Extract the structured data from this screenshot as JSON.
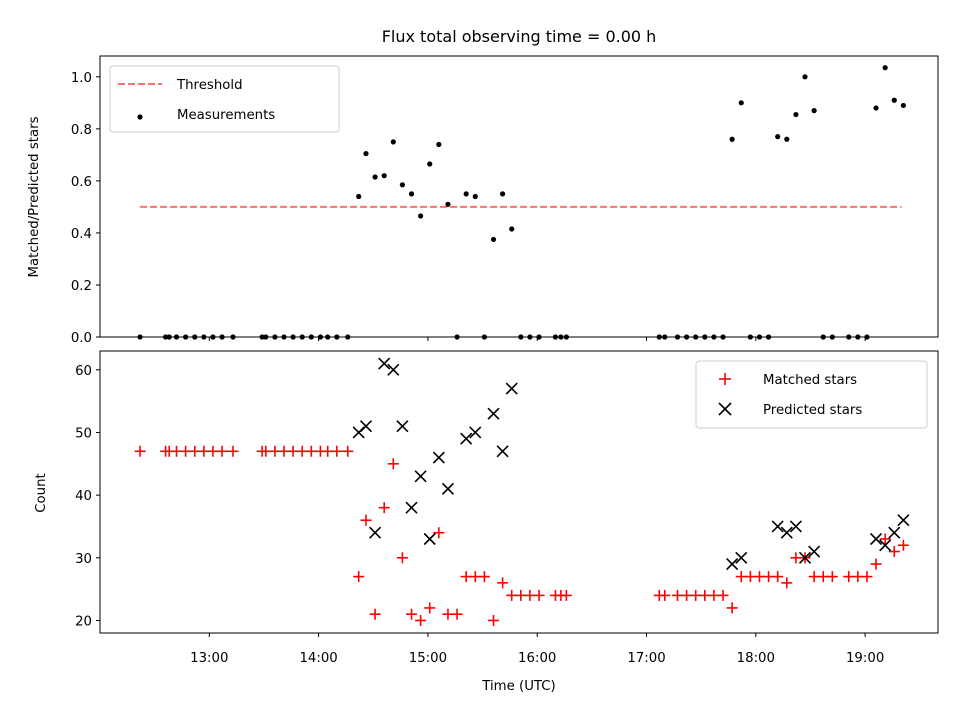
{
  "chart_data": [
    {
      "type": "scatter",
      "title": "Flux total observing time = 0.00 h",
      "xlabel": "",
      "ylabel": "Matched/Predicted stars",
      "xlim": [
        "12:00",
        "19:40"
      ],
      "ylim": [
        0,
        1.08
      ],
      "yticks": [
        "0.0",
        "0.2",
        "0.4",
        "0.6",
        "0.8",
        "1.0"
      ],
      "show_xtick_labels": false,
      "grid": false,
      "legend_position": "top-left",
      "threshold": {
        "name": "Threshold",
        "value": 0.5,
        "x_start": "12:22",
        "x_end": "19:20",
        "color": "#ff7070",
        "style": "dashed"
      },
      "series": [
        {
          "name": "Measurements",
          "marker": "dot",
          "color": "#000000",
          "points": [
            [
              "12:22",
              0
            ],
            [
              "12:36",
              0
            ],
            [
              "12:38",
              0
            ],
            [
              "12:42",
              0
            ],
            [
              "12:47",
              0
            ],
            [
              "12:52",
              0
            ],
            [
              "12:57",
              0
            ],
            [
              "13:02",
              0
            ],
            [
              "13:07",
              0
            ],
            [
              "13:13",
              0
            ],
            [
              "13:29",
              0
            ],
            [
              "13:31",
              0
            ],
            [
              "13:36",
              0
            ],
            [
              "13:41",
              0
            ],
            [
              "13:46",
              0
            ],
            [
              "13:51",
              0
            ],
            [
              "13:56",
              0
            ],
            [
              "14:01",
              0
            ],
            [
              "14:05",
              0
            ],
            [
              "14:10",
              0
            ],
            [
              "14:16",
              0
            ],
            [
              "14:22",
              0.54
            ],
            [
              "14:26",
              0.705
            ],
            [
              "14:31",
              0.615
            ],
            [
              "14:36",
              0.62
            ],
            [
              "14:41",
              0.75
            ],
            [
              "14:46",
              0.585
            ],
            [
              "14:51",
              0.55
            ],
            [
              "14:56",
              0.465
            ],
            [
              "15:01",
              0.665
            ],
            [
              "15:06",
              0.74
            ],
            [
              "15:11",
              0.51
            ],
            [
              "15:16",
              0
            ],
            [
              "15:21",
              0.55
            ],
            [
              "15:26",
              0.54
            ],
            [
              "15:31",
              0
            ],
            [
              "15:36",
              0.375
            ],
            [
              "15:41",
              0.55
            ],
            [
              "15:46",
              0.415
            ],
            [
              "15:51",
              0
            ],
            [
              "15:56",
              0
            ],
            [
              "16:01",
              0
            ],
            [
              "16:10",
              0
            ],
            [
              "16:13",
              0
            ],
            [
              "16:16",
              0
            ],
            [
              "17:07",
              0
            ],
            [
              "17:10",
              0
            ],
            [
              "17:17",
              0
            ],
            [
              "17:22",
              0
            ],
            [
              "17:27",
              0
            ],
            [
              "17:32",
              0
            ],
            [
              "17:37",
              0
            ],
            [
              "17:42",
              0
            ],
            [
              "17:47",
              0.76
            ],
            [
              "17:52",
              0.9
            ],
            [
              "17:57",
              0
            ],
            [
              "18:02",
              0
            ],
            [
              "18:07",
              0
            ],
            [
              "18:12",
              0.77
            ],
            [
              "18:17",
              0.76
            ],
            [
              "18:22",
              0.855
            ],
            [
              "18:27",
              1.0
            ],
            [
              "18:32",
              0.87
            ],
            [
              "18:37",
              0
            ],
            [
              "18:42",
              0
            ],
            [
              "18:51",
              0
            ],
            [
              "18:56",
              0
            ],
            [
              "19:01",
              0
            ],
            [
              "19:06",
              0.88
            ],
            [
              "19:11",
              1.035
            ],
            [
              "19:16",
              0.91
            ],
            [
              "19:21",
              0.89
            ]
          ]
        }
      ]
    },
    {
      "type": "scatter",
      "title": "",
      "xlabel": "Time (UTC)",
      "ylabel": "Count",
      "xlim": [
        "12:00",
        "19:40"
      ],
      "ylim": [
        18,
        63
      ],
      "yticks": [
        "20",
        "30",
        "40",
        "50",
        "60"
      ],
      "xticks": [
        "13:00",
        "14:00",
        "15:00",
        "16:00",
        "17:00",
        "18:00",
        "19:00"
      ],
      "grid": false,
      "legend_position": "top-right",
      "series": [
        {
          "name": "Matched stars",
          "marker": "plus",
          "color": "#ff0000",
          "points": [
            [
              "12:22",
              47
            ],
            [
              "12:36",
              47
            ],
            [
              "12:38",
              47
            ],
            [
              "12:42",
              47
            ],
            [
              "12:47",
              47
            ],
            [
              "12:52",
              47
            ],
            [
              "12:57",
              47
            ],
            [
              "13:02",
              47
            ],
            [
              "13:07",
              47
            ],
            [
              "13:13",
              47
            ],
            [
              "13:29",
              47
            ],
            [
              "13:31",
              47
            ],
            [
              "13:36",
              47
            ],
            [
              "13:41",
              47
            ],
            [
              "13:46",
              47
            ],
            [
              "13:51",
              47
            ],
            [
              "13:56",
              47
            ],
            [
              "14:01",
              47
            ],
            [
              "14:05",
              47
            ],
            [
              "14:10",
              47
            ],
            [
              "14:16",
              47
            ],
            [
              "14:22",
              27
            ],
            [
              "14:26",
              36
            ],
            [
              "14:31",
              21
            ],
            [
              "14:36",
              38
            ],
            [
              "14:41",
              45
            ],
            [
              "14:46",
              30
            ],
            [
              "14:51",
              21
            ],
            [
              "14:56",
              20
            ],
            [
              "15:01",
              22
            ],
            [
              "15:06",
              34
            ],
            [
              "15:11",
              21
            ],
            [
              "15:16",
              21
            ],
            [
              "15:21",
              27
            ],
            [
              "15:26",
              27
            ],
            [
              "15:31",
              27
            ],
            [
              "15:36",
              20
            ],
            [
              "15:41",
              26
            ],
            [
              "15:46",
              24
            ],
            [
              "15:51",
              24
            ],
            [
              "15:56",
              24
            ],
            [
              "16:01",
              24
            ],
            [
              "16:10",
              24
            ],
            [
              "16:13",
              24
            ],
            [
              "16:16",
              24
            ],
            [
              "17:07",
              24
            ],
            [
              "17:10",
              24
            ],
            [
              "17:17",
              24
            ],
            [
              "17:22",
              24
            ],
            [
              "17:27",
              24
            ],
            [
              "17:32",
              24
            ],
            [
              "17:37",
              24
            ],
            [
              "17:42",
              24
            ],
            [
              "17:47",
              22
            ],
            [
              "17:52",
              27
            ],
            [
              "17:57",
              27
            ],
            [
              "18:02",
              27
            ],
            [
              "18:07",
              27
            ],
            [
              "18:12",
              27
            ],
            [
              "18:17",
              26
            ],
            [
              "18:22",
              30
            ],
            [
              "18:27",
              30
            ],
            [
              "18:32",
              27
            ],
            [
              "18:37",
              27
            ],
            [
              "18:42",
              27
            ],
            [
              "18:51",
              27
            ],
            [
              "18:56",
              27
            ],
            [
              "19:01",
              27
            ],
            [
              "19:06",
              29
            ],
            [
              "19:11",
              33
            ],
            [
              "19:16",
              31
            ],
            [
              "19:21",
              32
            ]
          ]
        },
        {
          "name": "Predicted stars",
          "marker": "x",
          "color": "#000000",
          "points": [
            [
              "14:22",
              50
            ],
            [
              "14:26",
              51
            ],
            [
              "14:31",
              34
            ],
            [
              "14:36",
              61
            ],
            [
              "14:41",
              60
            ],
            [
              "14:46",
              51
            ],
            [
              "14:51",
              38
            ],
            [
              "14:56",
              43
            ],
            [
              "15:01",
              33
            ],
            [
              "15:06",
              46
            ],
            [
              "15:11",
              41
            ],
            [
              "15:21",
              49
            ],
            [
              "15:26",
              50
            ],
            [
              "15:36",
              53
            ],
            [
              "15:41",
              47
            ],
            [
              "15:46",
              57
            ],
            [
              "17:47",
              29
            ],
            [
              "17:52",
              30
            ],
            [
              "18:12",
              35
            ],
            [
              "18:17",
              34
            ],
            [
              "18:22",
              35
            ],
            [
              "18:27",
              30
            ],
            [
              "18:32",
              31
            ],
            [
              "19:06",
              33
            ],
            [
              "19:11",
              32
            ],
            [
              "19:16",
              34
            ],
            [
              "19:21",
              36
            ]
          ]
        }
      ]
    }
  ]
}
